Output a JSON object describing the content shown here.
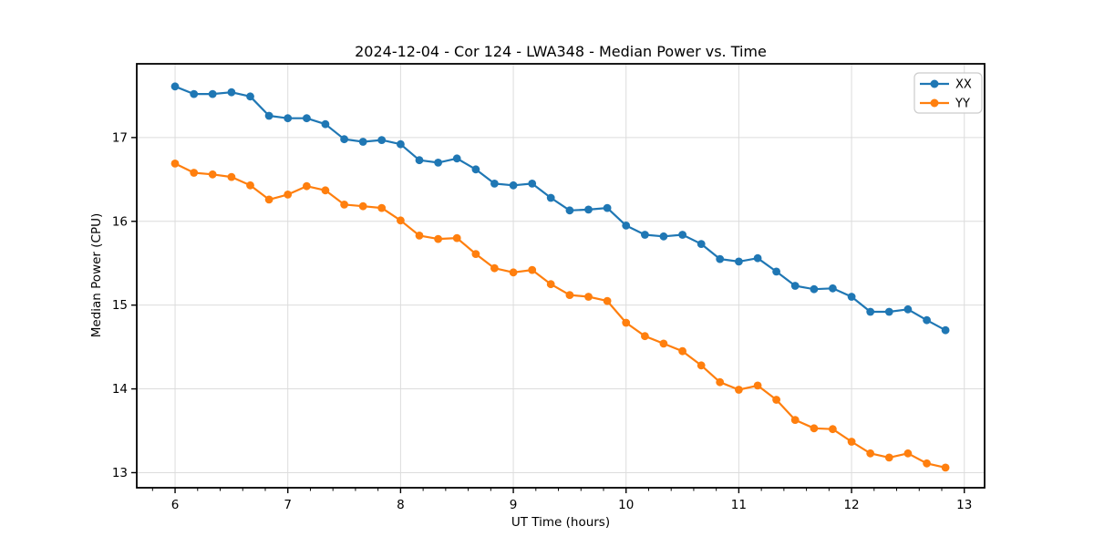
{
  "title": "2024-12-04 - Cor 124 - LWA348 - Median Power vs. Time",
  "chart_data": {
    "type": "line",
    "title": "2024-12-04 - Cor 124 - LWA348 - Median Power vs. Time",
    "xlabel": "UT Time (hours)",
    "ylabel": "Median Power (CPU)",
    "xlim": [
      5.66,
      13.18
    ],
    "ylim": [
      12.82,
      17.88
    ],
    "xticks": [
      6,
      7,
      8,
      9,
      10,
      11,
      12,
      13
    ],
    "yticks": [
      13,
      14,
      15,
      16,
      17
    ],
    "minor_xtick_step": 0.2,
    "grid": true,
    "grid_color": "#dcdcdc",
    "legend_position": "upper right",
    "marker": "circle",
    "x": [
      6,
      6.167,
      6.333,
      6.5,
      6.667,
      6.833,
      7,
      7.167,
      7.333,
      7.5,
      7.667,
      7.833,
      8,
      8.167,
      8.333,
      8.5,
      8.667,
      8.833,
      9,
      9.167,
      9.333,
      9.5,
      9.667,
      9.833,
      10,
      10.167,
      10.333,
      10.5,
      10.667,
      10.833,
      11,
      11.167,
      11.333,
      11.5,
      11.667,
      11.833,
      12,
      12.167,
      12.333,
      12.5,
      12.667,
      12.833
    ],
    "series": [
      {
        "name": "XX",
        "color": "#1f77b4",
        "values": [
          17.61,
          17.52,
          17.52,
          17.54,
          17.49,
          17.26,
          17.23,
          17.23,
          17.16,
          16.98,
          16.95,
          16.97,
          16.92,
          16.73,
          16.7,
          16.75,
          16.62,
          16.45,
          16.43,
          16.45,
          16.28,
          16.13,
          16.14,
          16.16,
          15.95,
          15.84,
          15.82,
          15.84,
          15.73,
          15.55,
          15.52,
          15.56,
          15.4,
          15.23,
          15.19,
          15.2,
          15.1,
          14.92,
          14.92,
          14.95,
          14.82,
          14.7
        ]
      },
      {
        "name": "YY",
        "color": "#ff7f0e",
        "values": [
          16.69,
          16.58,
          16.56,
          16.53,
          16.43,
          16.26,
          16.32,
          16.42,
          16.37,
          16.2,
          16.18,
          16.16,
          16.01,
          15.83,
          15.79,
          15.8,
          15.61,
          15.44,
          15.39,
          15.42,
          15.25,
          15.12,
          15.1,
          15.05,
          14.79,
          14.63,
          14.54,
          14.45,
          14.28,
          14.08,
          13.99,
          14.04,
          13.87,
          13.63,
          13.53,
          13.52,
          13.37,
          13.23,
          13.18,
          13.23,
          13.11,
          13.06
        ]
      }
    ]
  }
}
